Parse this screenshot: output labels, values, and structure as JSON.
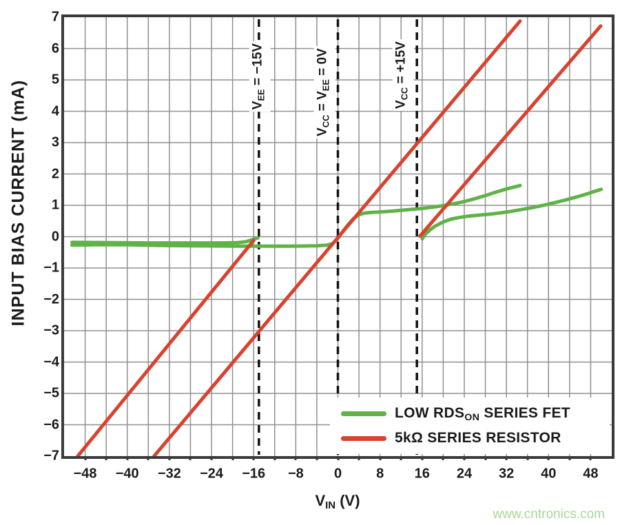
{
  "watermark": "www.cntronics.com",
  "colors": {
    "fet_green": "#5fb247",
    "resistor_red": "#d8422e",
    "grid": "#8f8f8f",
    "frame": "#3a3a3a",
    "text": "#1a1a1a",
    "dashed_line": "#111111",
    "watermark_green": "#a9d59b",
    "background": "#ffffff"
  },
  "chart_data": {
    "type": "line",
    "title": "",
    "ylabel": "INPUT BIAS CURRENT (mA)",
    "xlabel_segments": [
      {
        "t": "V"
      },
      {
        "t": "IN",
        "sub": true
      },
      {
        "t": " (V)"
      }
    ],
    "xlim": [
      -52,
      52
    ],
    "ylim": [
      -7,
      7
    ],
    "x_ticks": [
      -48,
      -40,
      -32,
      -24,
      -16,
      -8,
      0,
      8,
      16,
      24,
      32,
      40,
      48
    ],
    "y_ticks": [
      -7,
      -6,
      -5,
      -4,
      -3,
      -2,
      -1,
      0,
      1,
      2,
      3,
      4,
      5,
      6,
      7
    ],
    "x_grid_step": 4,
    "y_grid_step": 1,
    "grid": true,
    "legend_position": "inside-bottom-right",
    "reference_lines": [
      {
        "x": -15,
        "style": "dashed",
        "label_segments": [
          {
            "t": "V"
          },
          {
            "t": "EE",
            "sub": true
          },
          {
            "t": " = −15V"
          }
        ],
        "label_center_x_offset": 1,
        "label_center_y": 111
      },
      {
        "x": 0,
        "style": "dashed",
        "label_segments": [
          {
            "t": "V"
          },
          {
            "t": "CC",
            "sub": true
          },
          {
            "t": " = V"
          },
          {
            "t": "EE",
            "sub": true
          },
          {
            "t": " = 0V"
          }
        ],
        "label_center_x_offset": -20,
        "label_center_y": 134
      },
      {
        "x": 15,
        "style": "dashed",
        "label_segments": [
          {
            "t": "V"
          },
          {
            "t": "CC",
            "sub": true
          },
          {
            "t": " = +15V"
          }
        ],
        "label_center_x_offset": -20,
        "label_center_y": 109
      }
    ],
    "legend": [
      {
        "series": "low-rdson-series-fet",
        "color": "fet_green",
        "label_segments": [
          {
            "t": "LOW RDS"
          },
          {
            "t": "ON",
            "sub": true
          },
          {
            "t": " SERIES FET"
          }
        ]
      },
      {
        "series": "5k-series-resistor",
        "color": "resistor_red",
        "label_segments": [
          {
            "t": "5kΩ SERIES RESISTOR"
          }
        ]
      }
    ],
    "series": [
      {
        "name": "fet-supplies-0v",
        "color": "fet_green",
        "points": [
          [
            -50.5,
            -0.27
          ],
          [
            -46,
            -0.26
          ],
          [
            -40,
            -0.26
          ],
          [
            -34,
            -0.28
          ],
          [
            -28,
            -0.29
          ],
          [
            -20,
            -0.3
          ],
          [
            -14,
            -0.3
          ],
          [
            -8,
            -0.3
          ],
          [
            -4,
            -0.29
          ],
          [
            -2,
            -0.27
          ],
          [
            -1,
            -0.22
          ],
          [
            0,
            -0.05
          ],
          [
            1,
            0.18
          ],
          [
            2,
            0.4
          ],
          [
            3,
            0.58
          ],
          [
            4,
            0.7
          ],
          [
            5,
            0.75
          ],
          [
            6,
            0.77
          ],
          [
            8,
            0.79
          ],
          [
            10,
            0.81
          ],
          [
            12,
            0.84
          ],
          [
            14,
            0.87
          ],
          [
            16,
            0.9
          ],
          [
            18,
            0.94
          ],
          [
            20,
            0.99
          ],
          [
            22,
            1.05
          ],
          [
            24,
            1.12
          ],
          [
            26,
            1.21
          ],
          [
            28,
            1.31
          ],
          [
            30,
            1.42
          ],
          [
            32,
            1.52
          ],
          [
            34.6,
            1.63
          ]
        ]
      },
      {
        "name": "fet-supplies-pm15v-negative-branch",
        "color": "fet_green",
        "points": [
          [
            -50.5,
            -0.18
          ],
          [
            -44,
            -0.19
          ],
          [
            -36,
            -0.2
          ],
          [
            -28,
            -0.2
          ],
          [
            -22,
            -0.2
          ],
          [
            -19,
            -0.19
          ],
          [
            -17.5,
            -0.16
          ],
          [
            -16.5,
            -0.11
          ],
          [
            -15.2,
            -0.04
          ]
        ]
      },
      {
        "name": "fet-supplies-pm15v-positive-branch",
        "color": "fet_green",
        "points": [
          [
            16,
            -0.07
          ],
          [
            16.6,
            0.08
          ],
          [
            17.5,
            0.22
          ],
          [
            18.5,
            0.34
          ],
          [
            20,
            0.47
          ],
          [
            21.5,
            0.56
          ],
          [
            23,
            0.61
          ],
          [
            25,
            0.66
          ],
          [
            27,
            0.69
          ],
          [
            29,
            0.72
          ],
          [
            31,
            0.76
          ],
          [
            33,
            0.81
          ],
          [
            35,
            0.87
          ],
          [
            37,
            0.93
          ],
          [
            39,
            1.0
          ],
          [
            41,
            1.08
          ],
          [
            43,
            1.16
          ],
          [
            45,
            1.25
          ],
          [
            47,
            1.35
          ],
          [
            50,
            1.51
          ]
        ]
      },
      {
        "name": "resistor-supplies-0v",
        "color": "resistor_red",
        "points": [
          [
            -34.9,
            -7
          ],
          [
            34.6,
            6.88
          ]
        ]
      },
      {
        "name": "resistor-supplies-pm15v-negative-branch",
        "color": "resistor_red",
        "points": [
          [
            -49.4,
            -7
          ],
          [
            -16,
            -0.12
          ]
        ]
      },
      {
        "name": "resistor-supplies-pm15v-positive-branch",
        "color": "resistor_red",
        "points": [
          [
            15.6,
            0.02
          ],
          [
            49.9,
            6.72
          ]
        ]
      }
    ]
  }
}
